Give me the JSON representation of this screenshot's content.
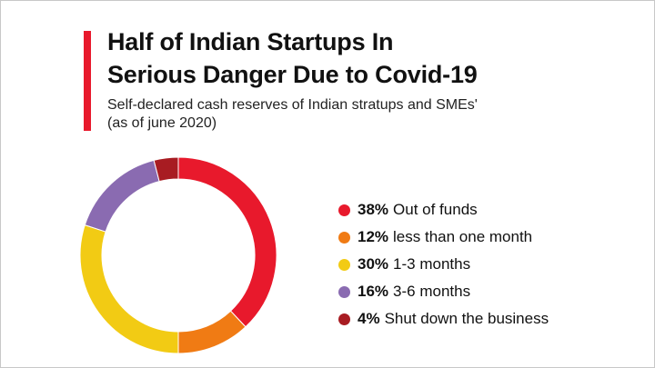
{
  "title_line1": "Half of Indian Startups In",
  "title_line2": "Serious Danger Due to Covid-19",
  "subtitle_line1": "Self-declared cash reserves of Indian stratups and SMEs'",
  "subtitle_line2": "(as of june 2020)",
  "accent_color": "#e8192c",
  "chart_data": {
    "type": "pie",
    "style": "donut",
    "title": "Half of Indian Startups In Serious Danger Due to Covid-19",
    "subtitle": "Self-declared cash reserves of Indian stratups and SMEs' (as of june 2020)",
    "legend_position": "right",
    "slices": [
      {
        "label": "Out of funds",
        "value": 38,
        "display": "38%",
        "color": "#e8192c"
      },
      {
        "label": "less than one month",
        "value": 12,
        "display": "12%",
        "color": "#f07b14"
      },
      {
        "label": "1-3 months",
        "value": 30,
        "display": "30%",
        "color": "#f2cb14"
      },
      {
        "label": "3-6 months",
        "value": 16,
        "display": "16%",
        "color": "#8a6bb1"
      },
      {
        "label": "Shut down the business",
        "value": 4,
        "display": "4%",
        "color": "#a81c22"
      }
    ]
  }
}
